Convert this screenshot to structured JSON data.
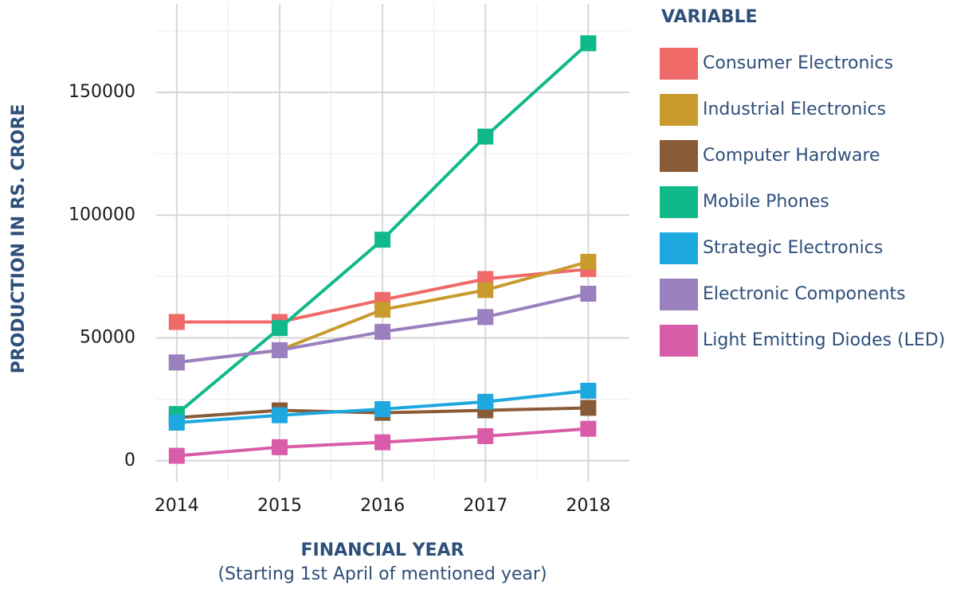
{
  "chart_data": {
    "type": "line",
    "x_label": "FINANCIAL YEAR",
    "x_label_note": "(Starting 1st April of mentioned year)",
    "y_label": "PRODUCTION IN RS. CRORE",
    "legend_title": "VARIABLE",
    "legend_position": "right",
    "grid": true,
    "x": [
      2014,
      2015,
      2016,
      2017,
      2018
    ],
    "xlim": [
      2013.8,
      2018.4
    ],
    "xticks": [
      2014,
      2015,
      2016,
      2017,
      2018
    ],
    "ylim": [
      -8500,
      186000
    ],
    "yticks": [
      0,
      50000,
      100000,
      150000
    ],
    "series": [
      {
        "name": "Consumer Electronics",
        "color": "#f06a6a",
        "values": [
          56500,
          56500,
          65500,
          74000,
          78000
        ]
      },
      {
        "name": "Industrial Electronics",
        "color": "#c99b2f",
        "values": [
          40000,
          45000,
          61500,
          69500,
          81000
        ]
      },
      {
        "name": "Computer Hardware",
        "color": "#8a5b37",
        "values": [
          17500,
          20500,
          19500,
          20500,
          21500
        ]
      },
      {
        "name": "Mobile Phones",
        "color": "#10b98a",
        "values": [
          19000,
          54000,
          90000,
          132000,
          170000
        ]
      },
      {
        "name": "Strategic Electronics",
        "color": "#1ea8e0",
        "values": [
          15500,
          18500,
          21000,
          24000,
          28500
        ]
      },
      {
        "name": "Electronic Components",
        "color": "#9b80c0",
        "values": [
          40000,
          45000,
          52500,
          58500,
          68000
        ]
      },
      {
        "name": "Light Emitting Diodes (LED)",
        "color": "#d95ca8",
        "values": [
          2000,
          5500,
          7500,
          10000,
          13000
        ]
      }
    ]
  }
}
